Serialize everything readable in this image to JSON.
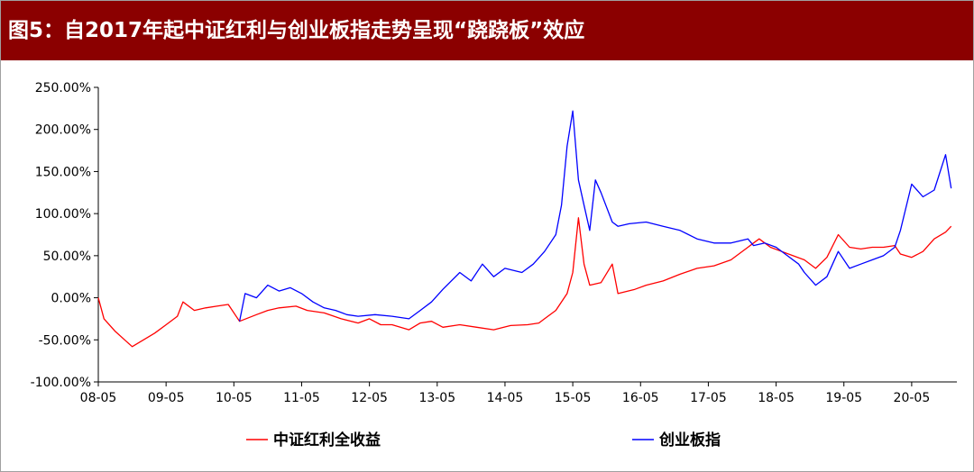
{
  "header": {
    "title": "图5：自2017年起中证红利与创业板指走势呈现“跷跷板”效应",
    "background_color": "#8b0000"
  },
  "chart_data": {
    "type": "line",
    "title": "图5：自2017年起中证红利与创业板指走势呈现“跷跷板”效应",
    "xlabel": "",
    "ylabel": "",
    "y_unit": "%",
    "ylim": [
      -100,
      250
    ],
    "y_ticks": [
      -100,
      -50,
      0,
      50,
      100,
      150,
      200,
      250
    ],
    "y_tick_labels": [
      "-100.00%",
      "-50.00%",
      "0.00%",
      "50.00%",
      "100.00%",
      "150.00%",
      "200.00%",
      "250.00%"
    ],
    "x_tick_labels": [
      "08-05",
      "09-05",
      "10-05",
      "11-05",
      "12-05",
      "13-05",
      "14-05",
      "15-05",
      "16-05",
      "17-05",
      "18-05",
      "19-05",
      "20-05"
    ],
    "x_range": [
      "2008-05",
      "2021-01"
    ],
    "grid": false,
    "legend_position": "bottom",
    "series": [
      {
        "name": "中证红利全收益",
        "color": "#ff0000",
        "x": [
          "2008-05",
          "2008-06",
          "2008-08",
          "2008-10",
          "2008-11",
          "2009-01",
          "2009-03",
          "2009-05",
          "2009-07",
          "2009-08",
          "2009-10",
          "2009-12",
          "2010-02",
          "2010-04",
          "2010-06",
          "2010-09",
          "2010-11",
          "2011-01",
          "2011-04",
          "2011-06",
          "2011-09",
          "2011-12",
          "2012-03",
          "2012-05",
          "2012-07",
          "2012-09",
          "2012-12",
          "2013-02",
          "2013-04",
          "2013-06",
          "2013-09",
          "2013-12",
          "2014-03",
          "2014-06",
          "2014-09",
          "2014-11",
          "2014-12",
          "2015-02",
          "2015-04",
          "2015-05",
          "2015-06",
          "2015-07",
          "2015-08",
          "2015-10",
          "2015-12",
          "2016-01",
          "2016-04",
          "2016-06",
          "2016-09",
          "2016-12",
          "2017-03",
          "2017-06",
          "2017-09",
          "2017-12",
          "2018-01",
          "2018-02",
          "2018-04",
          "2018-06",
          "2018-08",
          "2018-10",
          "2018-12",
          "2019-02",
          "2019-04",
          "2019-06",
          "2019-08",
          "2019-10",
          "2019-12",
          "2020-02",
          "2020-03",
          "2020-05",
          "2020-07",
          "2020-09",
          "2020-11",
          "2020-12"
        ],
        "values": [
          0,
          -25,
          -40,
          -52,
          -58,
          -50,
          -42,
          -32,
          -22,
          -5,
          -15,
          -12,
          -10,
          -8,
          -28,
          -20,
          -15,
          -12,
          -10,
          -15,
          -18,
          -25,
          -30,
          -25,
          -32,
          -32,
          -38,
          -30,
          -28,
          -35,
          -32,
          -35,
          -38,
          -33,
          -32,
          -30,
          -25,
          -15,
          5,
          30,
          95,
          40,
          15,
          18,
          40,
          5,
          10,
          15,
          20,
          28,
          35,
          38,
          45,
          60,
          65,
          70,
          60,
          55,
          50,
          45,
          35,
          48,
          75,
          60,
          58,
          60,
          60,
          62,
          52,
          48,
          55,
          70,
          78,
          85
        ]
      },
      {
        "name": "创业板指",
        "color": "#0000ff",
        "x": [
          "2010-06",
          "2010-07",
          "2010-09",
          "2010-11",
          "2011-01",
          "2011-03",
          "2011-05",
          "2011-07",
          "2011-09",
          "2011-11",
          "2012-01",
          "2012-03",
          "2012-06",
          "2012-09",
          "2012-12",
          "2013-02",
          "2013-04",
          "2013-06",
          "2013-09",
          "2013-11",
          "2014-01",
          "2014-03",
          "2014-05",
          "2014-08",
          "2014-10",
          "2014-12",
          "2015-02",
          "2015-03",
          "2015-04",
          "2015-05",
          "2015-06",
          "2015-07",
          "2015-08",
          "2015-09",
          "2015-10",
          "2015-12",
          "2016-01",
          "2016-03",
          "2016-06",
          "2016-09",
          "2016-12",
          "2017-03",
          "2017-06",
          "2017-09",
          "2017-12",
          "2018-01",
          "2018-03",
          "2018-05",
          "2018-07",
          "2018-09",
          "2018-10",
          "2018-12",
          "2019-02",
          "2019-04",
          "2019-06",
          "2019-08",
          "2019-10",
          "2019-12",
          "2020-02",
          "2020-03",
          "2020-05",
          "2020-07",
          "2020-09",
          "2020-11",
          "2020-12"
        ],
        "values": [
          -28,
          5,
          0,
          15,
          8,
          12,
          5,
          -5,
          -12,
          -15,
          -20,
          -22,
          -20,
          -22,
          -25,
          -15,
          -5,
          10,
          30,
          20,
          40,
          25,
          35,
          30,
          40,
          55,
          75,
          110,
          180,
          222,
          140,
          110,
          80,
          140,
          125,
          90,
          85,
          88,
          90,
          85,
          80,
          70,
          65,
          65,
          70,
          62,
          65,
          60,
          50,
          40,
          30,
          15,
          25,
          55,
          35,
          40,
          45,
          50,
          60,
          80,
          135,
          120,
          128,
          170,
          130
        ]
      }
    ]
  },
  "legend": {
    "items": [
      {
        "label": "中证红利全收益",
        "color": "#ff0000"
      },
      {
        "label": "创业板指",
        "color": "#0000ff"
      }
    ]
  }
}
